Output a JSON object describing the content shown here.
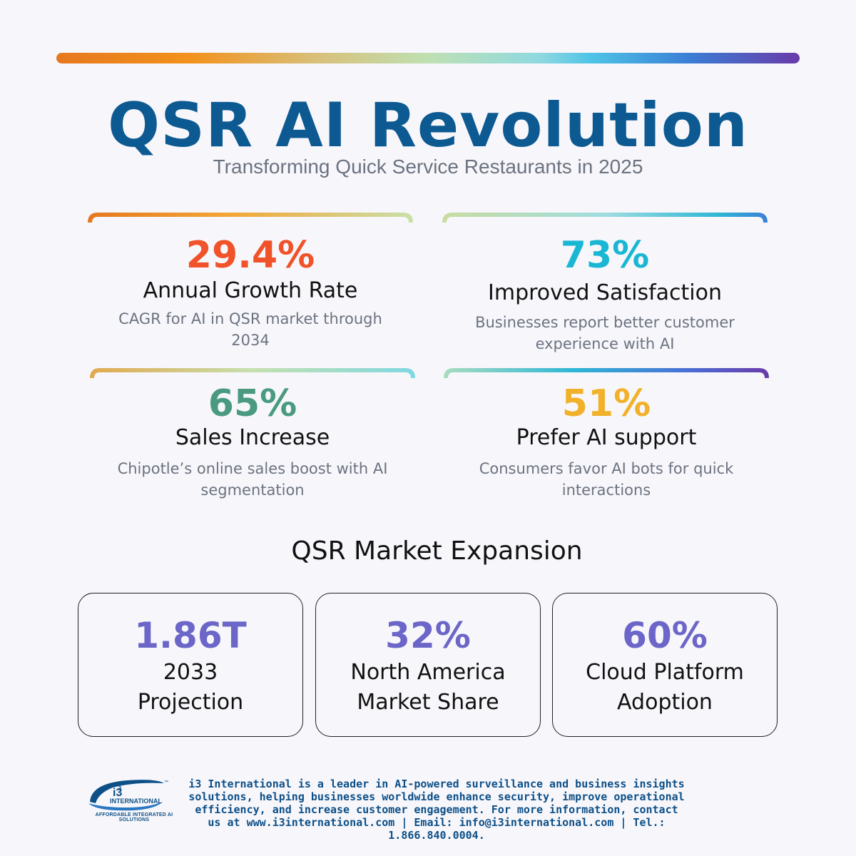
{
  "header": {
    "title": "QSR AI Revolution",
    "subtitle": "Transforming Quick Service Restaurants in 2025"
  },
  "stats": [
    {
      "value": "29.4%",
      "label": "Annual Growth Rate",
      "desc": "CAGR for AI in QSR market through 2034",
      "color": "#f0522a"
    },
    {
      "value": "73%",
      "label": "Improved Satisfaction",
      "desc": "Businesses report better customer experience with AI",
      "color": "#1ab7d4"
    },
    {
      "value": "65%",
      "label": "Sales Increase",
      "desc": "Chipotle’s online sales boost with AI segmentation",
      "color": "#4a9a80"
    },
    {
      "value": "51%",
      "label": "Prefer AI support",
      "desc": "Consumers favor AI bots for quick interactions",
      "color": "#f2b12a"
    }
  ],
  "market": {
    "title": "QSR Market Expansion",
    "cards": [
      {
        "value": "1.86T",
        "label": "2033 Projection"
      },
      {
        "value": "32%",
        "label": "North America Market Share"
      },
      {
        "value": "60%",
        "label": "Cloud Platform Adoption"
      }
    ],
    "value_color": "#6b66c8"
  },
  "footer": {
    "text": "i3 International is a leader in AI-powered surveillance and business insights solutions, helping businesses worldwide enhance security, improve operational efficiency, and increase customer engagement. For more information, contact us at www.i3international.com | Email: info@i3international.com | Tel.: 1.866.840.0004.",
    "logo_mark": "i3",
    "logo_sup": "3",
    "logo_word": "INTERNATIONAL",
    "logo_tm": "™",
    "logo_tagline": "AFFORDABLE INTEGRATED AI SOLUTIONS"
  }
}
